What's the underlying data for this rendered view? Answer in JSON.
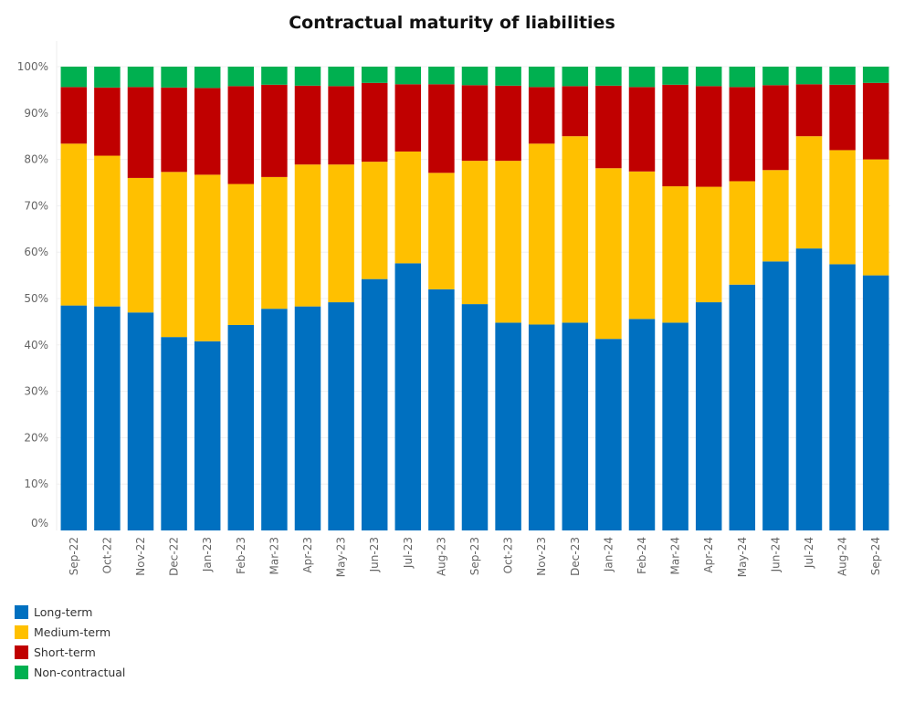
{
  "chart_data": {
    "type": "bar",
    "stacked": true,
    "title": "Contractual maturity of liabilities",
    "xlabel": "",
    "ylabel": "",
    "ylim": [
      0,
      100
    ],
    "y_ticks": [
      "0%",
      "10%",
      "20%",
      "30%",
      "40%",
      "50%",
      "60%",
      "70%",
      "80%",
      "90%",
      "100%"
    ],
    "grid": true,
    "legend_position": "bottom-left",
    "categories": [
      "Sep-22",
      "Oct-22",
      "Nov-22",
      "Dec-22",
      "Jan-23",
      "Feb-23",
      "Mar-23",
      "Apr-23",
      "May-23",
      "Jun-23",
      "Jul-23",
      "Aug-23",
      "Sep-23",
      "Oct-23",
      "Nov-23",
      "Dec-23",
      "Jan-24",
      "Feb-24",
      "Mar-24",
      "Apr-24",
      "May-24",
      "Jun-24",
      "Jul-24",
      "Aug-24",
      "Sep-24"
    ],
    "series": [
      {
        "name": "Long-term",
        "color": "#0070C0",
        "values": [
          48.5,
          48.3,
          47.0,
          41.7,
          40.8,
          44.3,
          47.8,
          48.3,
          49.2,
          54.2,
          57.6,
          52.0,
          48.8,
          44.8,
          44.4,
          44.8,
          41.3,
          45.6,
          44.8,
          49.2,
          53.0,
          58.0,
          60.8,
          57.4,
          55.0
        ]
      },
      {
        "name": "Medium-term",
        "color": "#FFC000",
        "values": [
          34.9,
          32.5,
          29.0,
          35.6,
          35.9,
          30.4,
          28.4,
          30.6,
          29.7,
          25.3,
          24.1,
          25.1,
          30.9,
          34.9,
          39.0,
          40.2,
          36.8,
          31.8,
          29.4,
          24.9,
          22.3,
          19.7,
          24.2,
          24.6,
          25.0
        ]
      },
      {
        "name": "Short-term",
        "color": "#C00000",
        "values": [
          12.2,
          14.7,
          19.6,
          18.2,
          18.7,
          21.1,
          19.9,
          17.0,
          16.9,
          17.0,
          14.5,
          19.1,
          16.3,
          16.2,
          12.2,
          10.8,
          17.8,
          18.2,
          21.9,
          21.7,
          20.3,
          18.3,
          11.2,
          14.1,
          16.5
        ]
      },
      {
        "name": "Non-contractual",
        "color": "#00B050",
        "values": [
          4.4,
          4.5,
          4.4,
          4.5,
          4.6,
          4.2,
          3.9,
          4.1,
          4.2,
          3.5,
          3.8,
          3.8,
          4.0,
          4.1,
          4.4,
          4.2,
          4.1,
          4.4,
          3.9,
          4.2,
          4.4,
          4.0,
          3.8,
          3.9,
          3.5
        ]
      }
    ]
  }
}
